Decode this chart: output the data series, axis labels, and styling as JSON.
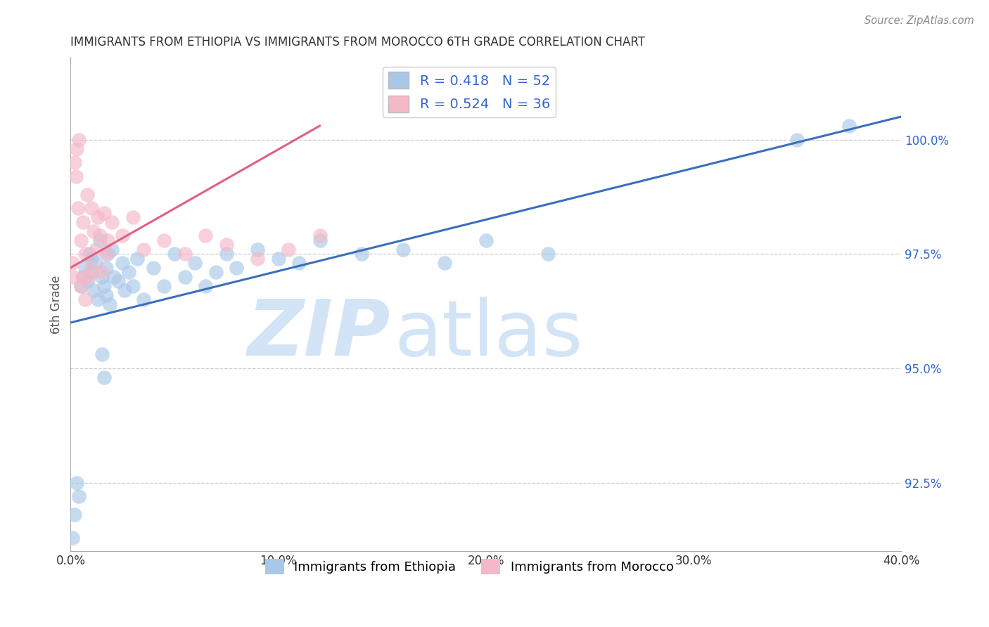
{
  "title": "IMMIGRANTS FROM ETHIOPIA VS IMMIGRANTS FROM MOROCCO 6TH GRADE CORRELATION CHART",
  "source": "Source: ZipAtlas.com",
  "xlabel_ethiopia": "Immigrants from Ethiopia",
  "xlabel_morocco": "Immigrants from Morocco",
  "ylabel": "6th Grade",
  "xlim": [
    0.0,
    40.0
  ],
  "ylim": [
    91.0,
    101.8
  ],
  "yticks": [
    92.5,
    95.0,
    97.5,
    100.0
  ],
  "ytick_labels": [
    "92.5%",
    "95.0%",
    "97.5%",
    "100.0%"
  ],
  "xtick_labels": [
    "0.0%",
    "10.0%",
    "20.0%",
    "30.0%",
    "40.0%"
  ],
  "xticks": [
    0.0,
    10.0,
    20.0,
    30.0,
    40.0
  ],
  "ethiopia_R": 0.418,
  "ethiopia_N": 52,
  "morocco_R": 0.524,
  "morocco_N": 36,
  "blue_color": "#a8c8e8",
  "pink_color": "#f4b8c8",
  "blue_line_color": "#3a6fbc",
  "pink_line_color": "#e06080",
  "legend_R_color": "#3366cc",
  "blue_line_x0": 0.0,
  "blue_line_y0": 96.0,
  "blue_line_x1": 40.0,
  "blue_line_y1": 100.5,
  "pink_line_x0": 0.0,
  "pink_line_y0": 97.2,
  "pink_line_x1": 12.0,
  "pink_line_y1": 100.3,
  "ethiopia_x": [
    0.1,
    0.2,
    0.3,
    0.4,
    0.5,
    0.6,
    0.7,
    0.8,
    0.9,
    1.0,
    1.0,
    1.1,
    1.2,
    1.3,
    1.4,
    1.5,
    1.6,
    1.7,
    1.7,
    1.8,
    1.9,
    2.0,
    2.1,
    2.3,
    2.5,
    2.6,
    2.8,
    3.0,
    3.2,
    3.5,
    4.0,
    4.5,
    5.0,
    5.5,
    6.0,
    6.5,
    7.0,
    7.5,
    8.0,
    9.0,
    10.0,
    11.0,
    12.0,
    14.0,
    16.0,
    18.0,
    20.0,
    23.0,
    35.0,
    37.5,
    1.5,
    1.6
  ],
  "ethiopia_y": [
    91.3,
    91.8,
    92.5,
    92.2,
    96.8,
    97.0,
    97.2,
    96.9,
    97.5,
    97.1,
    97.4,
    96.7,
    97.3,
    96.5,
    97.8,
    97.0,
    96.8,
    97.2,
    96.6,
    97.5,
    96.4,
    97.6,
    97.0,
    96.9,
    97.3,
    96.7,
    97.1,
    96.8,
    97.4,
    96.5,
    97.2,
    96.8,
    97.5,
    97.0,
    97.3,
    96.8,
    97.1,
    97.5,
    97.2,
    97.6,
    97.4,
    97.3,
    97.8,
    97.5,
    97.6,
    97.3,
    97.8,
    97.5,
    100.0,
    100.3,
    95.3,
    94.8
  ],
  "morocco_x": [
    0.1,
    0.15,
    0.2,
    0.25,
    0.3,
    0.35,
    0.4,
    0.5,
    0.6,
    0.7,
    0.8,
    0.9,
    1.0,
    1.0,
    1.1,
    1.2,
    1.3,
    1.4,
    1.5,
    1.6,
    1.7,
    1.8,
    2.0,
    2.5,
    3.0,
    3.5,
    4.5,
    5.5,
    6.5,
    7.5,
    9.0,
    10.5,
    12.0,
    0.5,
    0.6,
    0.7
  ],
  "morocco_y": [
    97.3,
    97.0,
    99.5,
    99.2,
    99.8,
    98.5,
    100.0,
    97.8,
    98.2,
    97.5,
    98.8,
    97.0,
    98.5,
    97.2,
    98.0,
    97.6,
    98.3,
    97.9,
    97.1,
    98.4,
    97.5,
    97.8,
    98.2,
    97.9,
    98.3,
    97.6,
    97.8,
    97.5,
    97.9,
    97.7,
    97.4,
    97.6,
    97.9,
    96.8,
    97.0,
    96.5
  ]
}
